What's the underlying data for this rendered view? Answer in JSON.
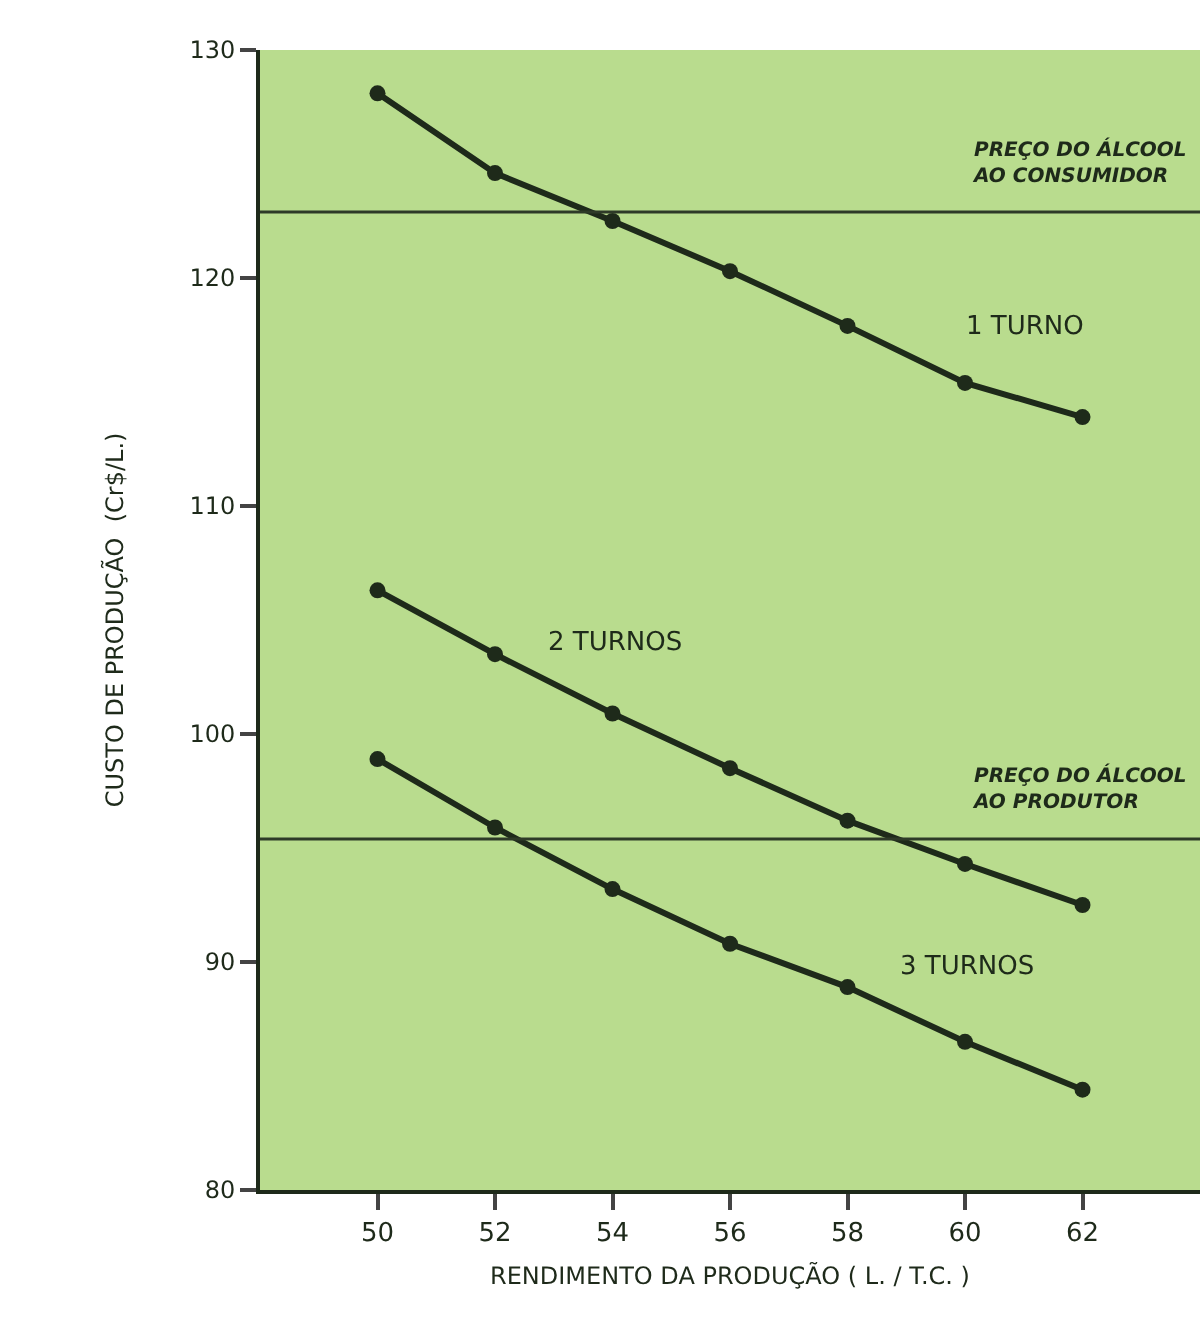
{
  "chart_data": {
    "type": "line",
    "xlabel": "RENDIMENTO DA PRODUÇÃO ( L. / T.C. )",
    "ylabel": "CUSTO DE PRODUÇÃO  (Cr$/L.)",
    "x": [
      50,
      52,
      54,
      56,
      58,
      60,
      62
    ],
    "series": [
      {
        "name": "1 TURNO",
        "color": "#1e2a1a",
        "values": [
          128.1,
          124.6,
          122.5,
          120.3,
          117.9,
          115.4,
          113.9
        ]
      },
      {
        "name": "2 TURNOS",
        "color": "#1e2a1a",
        "values": [
          106.3,
          103.5,
          100.9,
          98.5,
          96.2,
          94.3,
          92.5
        ]
      },
      {
        "name": "3 TURNOS",
        "color": "#1e2a1a",
        "values": [
          98.9,
          95.9,
          93.2,
          90.8,
          88.9,
          86.5,
          84.4
        ]
      }
    ],
    "xlim": [
      48,
      64
    ],
    "xticks": [
      50,
      52,
      54,
      56,
      58,
      60,
      62
    ],
    "ylim": [
      80,
      130
    ],
    "yticks": [
      80,
      90,
      100,
      110,
      120,
      130
    ],
    "ref_lines": [
      {
        "axis": "y",
        "value": 122.9,
        "label": "PREÇO DO ÁLCOOL\nAO CONSUMIDOR",
        "color": "#2e3a28"
      },
      {
        "axis": "y",
        "value": 95.4,
        "label": "PREÇO DO ÁLCOOL\nAO PRODUTOR",
        "color": "#2e3a28"
      }
    ],
    "grid": false,
    "legend": false,
    "marker": "circle",
    "line_style": "solid"
  }
}
